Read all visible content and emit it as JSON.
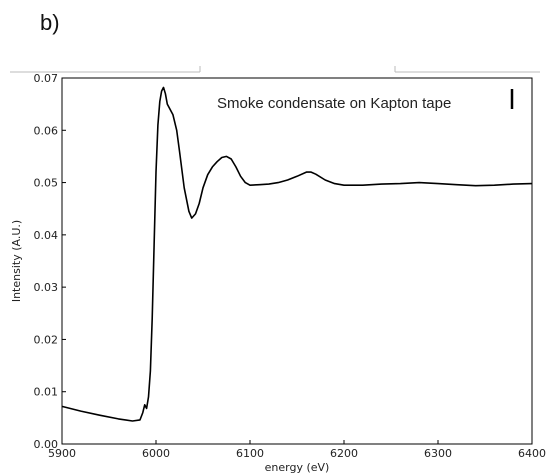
{
  "panel_label": "b)",
  "chart_data": {
    "type": "line",
    "title": "",
    "xlabel": "energy (eV)",
    "ylabel": "Intensity (A.U.)",
    "xlim": [
      5900,
      6400
    ],
    "ylim": [
      0,
      0.07
    ],
    "xticks": [
      "5900",
      "6000",
      "6100",
      "6200",
      "6300",
      "6400"
    ],
    "yticks": [
      "0.00",
      "0.01",
      "0.02",
      "0.03",
      "0.04",
      "0.05",
      "0.06",
      "0.07"
    ],
    "grid": false,
    "annotation": "Smoke condensate on Kapton tape",
    "series": [
      {
        "color": "#000000",
        "x": [
          5900,
          5920,
          5940,
          5960,
          5975,
          5983,
          5986,
          5988,
          5990,
          5992,
          5994,
          5996,
          5998,
          6000,
          6002,
          6004,
          6006,
          6008,
          6010,
          6012,
          6015,
          6018,
          6022,
          6025,
          6030,
          6035,
          6038,
          6042,
          6046,
          6050,
          6055,
          6060,
          6065,
          6070,
          6075,
          6080,
          6085,
          6090,
          6095,
          6100,
          6110,
          6120,
          6130,
          6140,
          6150,
          6160,
          6165,
          6170,
          6180,
          6190,
          6200,
          6220,
          6240,
          6260,
          6280,
          6300,
          6320,
          6340,
          6360,
          6380,
          6400
        ],
        "y": [
          0.0072,
          0.0063,
          0.0055,
          0.0048,
          0.0044,
          0.0046,
          0.006,
          0.0075,
          0.0068,
          0.009,
          0.014,
          0.024,
          0.038,
          0.052,
          0.061,
          0.0655,
          0.0675,
          0.0682,
          0.067,
          0.065,
          0.064,
          0.063,
          0.06,
          0.056,
          0.049,
          0.0445,
          0.0432,
          0.044,
          0.046,
          0.049,
          0.0515,
          0.053,
          0.054,
          0.0548,
          0.055,
          0.0545,
          0.053,
          0.0512,
          0.05,
          0.0495,
          0.0496,
          0.0497,
          0.05,
          0.0505,
          0.0512,
          0.052,
          0.052,
          0.0516,
          0.0505,
          0.0498,
          0.0495,
          0.0495,
          0.0497,
          0.0498,
          0.05,
          0.0498,
          0.0496,
          0.0494,
          0.0495,
          0.0497,
          0.0498
        ]
      }
    ]
  }
}
